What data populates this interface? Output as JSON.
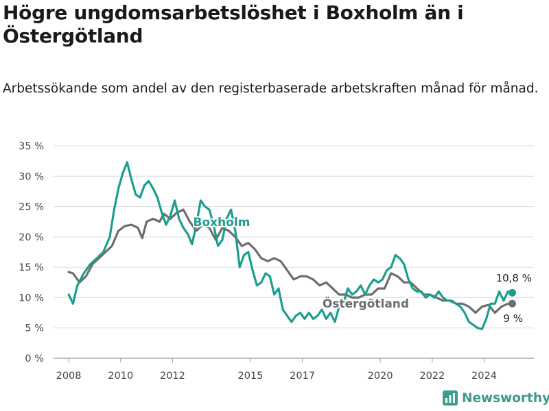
{
  "title": "Högre ungdomsarbetslöshet i Boxholm än i Östergötland",
  "subtitle": "Arbetssökande som andel av den registerbaserade arbetskraften månad för månad.",
  "brand": {
    "name": "Newsworthy",
    "icon": "newsworthy-logo-icon",
    "color": "#3d9a8d"
  },
  "chart_data": {
    "type": "line",
    "title": "",
    "xlabel": "",
    "ylabel": "",
    "x_ticks": [
      "2008",
      "2010",
      "2012",
      "2015",
      "2017",
      "2020",
      "2022",
      "2024"
    ],
    "y_ticks": [
      "0 %",
      "5 %",
      "10 %",
      "15 %",
      "20 %",
      "25 %",
      "30 %",
      "35 %"
    ],
    "ylim": [
      0,
      35
    ],
    "xlim": [
      "2007-06",
      "2025-12"
    ],
    "grid": true,
    "legend": "inline labels on lines",
    "series": [
      {
        "name": "Boxholm",
        "color": "#1b9e8e",
        "end_label": "10,8 %",
        "points": [
          [
            "2008-01",
            10.5
          ],
          [
            "2008-03",
            9.0
          ],
          [
            "2008-05",
            12.0
          ],
          [
            "2008-08",
            14.0
          ],
          [
            "2008-11",
            15.5
          ],
          [
            "2009-02",
            16.5
          ],
          [
            "2009-05",
            17.5
          ],
          [
            "2009-08",
            20.0
          ],
          [
            "2009-10",
            24.5
          ],
          [
            "2009-12",
            28.0
          ],
          [
            "2010-02",
            30.5
          ],
          [
            "2010-04",
            32.3
          ],
          [
            "2010-06",
            29.5
          ],
          [
            "2010-08",
            27.0
          ],
          [
            "2010-10",
            26.5
          ],
          [
            "2010-12",
            28.5
          ],
          [
            "2011-02",
            29.2
          ],
          [
            "2011-04",
            28.0
          ],
          [
            "2011-06",
            26.5
          ],
          [
            "2011-08",
            24.0
          ],
          [
            "2011-10",
            22.0
          ],
          [
            "2011-12",
            23.5
          ],
          [
            "2012-02",
            26.0
          ],
          [
            "2012-04",
            23.0
          ],
          [
            "2012-06",
            21.5
          ],
          [
            "2012-08",
            20.5
          ],
          [
            "2012-10",
            18.8
          ],
          [
            "2012-12",
            22.0
          ],
          [
            "2013-02",
            26.0
          ],
          [
            "2013-04",
            25.0
          ],
          [
            "2013-06",
            24.5
          ],
          [
            "2013-08",
            22.0
          ],
          [
            "2013-10",
            18.5
          ],
          [
            "2013-12",
            19.5
          ],
          [
            "2014-02",
            23.0
          ],
          [
            "2014-04",
            24.5
          ],
          [
            "2014-06",
            21.0
          ],
          [
            "2014-08",
            15.0
          ],
          [
            "2014-10",
            17.0
          ],
          [
            "2014-12",
            17.5
          ],
          [
            "2015-02",
            14.5
          ],
          [
            "2015-04",
            12.0
          ],
          [
            "2015-06",
            12.5
          ],
          [
            "2015-08",
            14.0
          ],
          [
            "2015-10",
            13.5
          ],
          [
            "2015-12",
            10.5
          ],
          [
            "2016-02",
            11.5
          ],
          [
            "2016-04",
            8.0
          ],
          [
            "2016-06",
            7.0
          ],
          [
            "2016-08",
            6.0
          ],
          [
            "2016-10",
            7.0
          ],
          [
            "2016-12",
            7.5
          ],
          [
            "2017-02",
            6.5
          ],
          [
            "2017-04",
            7.5
          ],
          [
            "2017-06",
            6.5
          ],
          [
            "2017-08",
            7.0
          ],
          [
            "2017-10",
            8.0
          ],
          [
            "2017-12",
            6.5
          ],
          [
            "2018-02",
            7.5
          ],
          [
            "2018-04",
            6.0
          ],
          [
            "2018-06",
            8.5
          ],
          [
            "2018-08",
            9.0
          ],
          [
            "2018-10",
            11.5
          ],
          [
            "2018-12",
            10.5
          ],
          [
            "2019-02",
            11.0
          ],
          [
            "2019-04",
            12.0
          ],
          [
            "2019-06",
            10.5
          ],
          [
            "2019-08",
            12.0
          ],
          [
            "2019-10",
            13.0
          ],
          [
            "2019-12",
            12.5
          ],
          [
            "2020-02",
            13.0
          ],
          [
            "2020-04",
            14.5
          ],
          [
            "2020-06",
            15.0
          ],
          [
            "2020-08",
            17.0
          ],
          [
            "2020-10",
            16.5
          ],
          [
            "2020-12",
            15.5
          ],
          [
            "2021-02",
            13.0
          ],
          [
            "2021-04",
            11.5
          ],
          [
            "2021-06",
            11.0
          ],
          [
            "2021-08",
            11.0
          ],
          [
            "2021-10",
            10.0
          ],
          [
            "2021-12",
            10.5
          ],
          [
            "2022-02",
            10.0
          ],
          [
            "2022-04",
            11.0
          ],
          [
            "2022-06",
            10.0
          ],
          [
            "2022-08",
            9.5
          ],
          [
            "2022-10",
            9.5
          ],
          [
            "2022-12",
            9.0
          ],
          [
            "2023-02",
            8.5
          ],
          [
            "2023-04",
            7.5
          ],
          [
            "2023-06",
            6.0
          ],
          [
            "2023-08",
            5.5
          ],
          [
            "2023-10",
            5.0
          ],
          [
            "2023-12",
            4.8
          ],
          [
            "2024-02",
            6.5
          ],
          [
            "2024-04",
            9.0
          ],
          [
            "2024-06",
            9.0
          ],
          [
            "2024-08",
            11.0
          ],
          [
            "2024-10",
            9.5
          ],
          [
            "2024-12",
            11.0
          ],
          [
            "2025-02",
            10.8
          ]
        ]
      },
      {
        "name": "Östergötland",
        "color": "#6d6d6d",
        "end_label": "9 %",
        "points": [
          [
            "2008-01",
            14.2
          ],
          [
            "2008-03",
            14.0
          ],
          [
            "2008-06",
            12.5
          ],
          [
            "2008-09",
            13.5
          ],
          [
            "2008-12",
            15.5
          ],
          [
            "2009-03",
            16.5
          ],
          [
            "2009-06",
            17.5
          ],
          [
            "2009-09",
            18.5
          ],
          [
            "2009-12",
            21.0
          ],
          [
            "2010-03",
            21.8
          ],
          [
            "2010-06",
            22.0
          ],
          [
            "2010-09",
            21.5
          ],
          [
            "2010-11",
            19.8
          ],
          [
            "2011-01",
            22.5
          ],
          [
            "2011-04",
            23.0
          ],
          [
            "2011-07",
            22.5
          ],
          [
            "2011-09",
            23.8
          ],
          [
            "2011-12",
            23.0
          ],
          [
            "2012-03",
            24.0
          ],
          [
            "2012-06",
            24.5
          ],
          [
            "2012-09",
            22.5
          ],
          [
            "2012-12",
            21.0
          ],
          [
            "2013-03",
            22.0
          ],
          [
            "2013-06",
            21.5
          ],
          [
            "2013-09",
            19.5
          ],
          [
            "2013-12",
            21.5
          ],
          [
            "2014-03",
            21.0
          ],
          [
            "2014-06",
            20.0
          ],
          [
            "2014-09",
            18.5
          ],
          [
            "2014-12",
            19.0
          ],
          [
            "2015-03",
            18.0
          ],
          [
            "2015-06",
            16.5
          ],
          [
            "2015-09",
            16.0
          ],
          [
            "2015-12",
            16.5
          ],
          [
            "2016-03",
            16.0
          ],
          [
            "2016-06",
            14.5
          ],
          [
            "2016-09",
            13.0
          ],
          [
            "2016-12",
            13.5
          ],
          [
            "2017-03",
            13.5
          ],
          [
            "2017-06",
            13.0
          ],
          [
            "2017-09",
            12.0
          ],
          [
            "2017-12",
            12.5
          ],
          [
            "2018-03",
            11.5
          ],
          [
            "2018-06",
            10.5
          ],
          [
            "2018-09",
            10.5
          ],
          [
            "2018-12",
            10.0
          ],
          [
            "2019-03",
            10.0
          ],
          [
            "2019-06",
            10.5
          ],
          [
            "2019-09",
            10.5
          ],
          [
            "2019-12",
            11.5
          ],
          [
            "2020-03",
            11.5
          ],
          [
            "2020-06",
            14.0
          ],
          [
            "2020-09",
            13.5
          ],
          [
            "2020-12",
            12.5
          ],
          [
            "2021-03",
            12.5
          ],
          [
            "2021-06",
            11.5
          ],
          [
            "2021-09",
            10.5
          ],
          [
            "2021-12",
            10.5
          ],
          [
            "2022-03",
            10.0
          ],
          [
            "2022-06",
            9.5
          ],
          [
            "2022-09",
            9.5
          ],
          [
            "2022-12",
            9.0
          ],
          [
            "2023-03",
            9.0
          ],
          [
            "2023-06",
            8.5
          ],
          [
            "2023-09",
            7.5
          ],
          [
            "2023-12",
            8.5
          ],
          [
            "2024-03",
            8.8
          ],
          [
            "2024-06",
            7.5
          ],
          [
            "2024-09",
            8.5
          ],
          [
            "2024-12",
            9.0
          ],
          [
            "2025-02",
            9.0
          ]
        ]
      }
    ]
  }
}
